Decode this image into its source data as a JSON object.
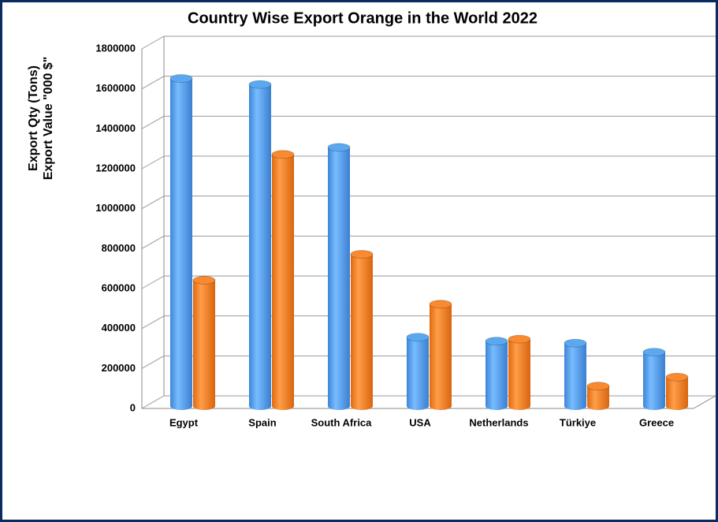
{
  "chart_data": {
    "type": "bar",
    "title": "Country Wise Export Orange in the World 2022",
    "y_label": [
      "Export Qty (Tons)",
      "Export Value \"000 $\""
    ],
    "categories": [
      "Egypt",
      "Spain",
      "South Africa",
      "USA",
      "Netherlands",
      "Türkiye",
      "Greece"
    ],
    "series": [
      {
        "color": "#5aa9f0",
        "values": [
          1640000,
          1610000,
          1295000,
          345000,
          325000,
          315000,
          270000
        ]
      },
      {
        "color": "#f98a30",
        "values": [
          630000,
          1260000,
          760000,
          510000,
          335000,
          100000,
          145000
        ]
      }
    ],
    "ylim": [
      0,
      1800000
    ],
    "yticks": [
      0,
      200000,
      400000,
      600000,
      800000,
      1000000,
      1200000,
      1400000,
      1600000,
      1800000
    ],
    "grid": true
  }
}
